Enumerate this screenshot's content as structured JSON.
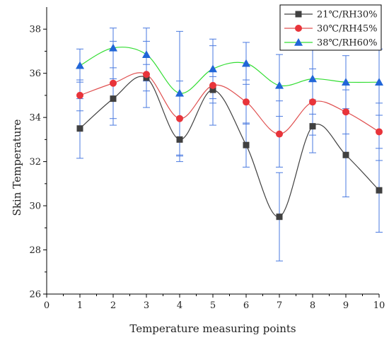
{
  "chart_data": {
    "type": "line",
    "xlabel": "Temperature measuring points",
    "ylabel": "Skin Temperature",
    "xlim": [
      0,
      10
    ],
    "ylim": [
      26,
      39
    ],
    "xticks": [
      "0",
      "1",
      "2",
      "3",
      "4",
      "5",
      "6",
      "7",
      "8",
      "9",
      "10"
    ],
    "yticks": [
      "26",
      "28",
      "30",
      "32",
      "34",
      "36",
      "38"
    ],
    "legend_position": "top-right",
    "x": [
      1,
      2,
      3,
      4,
      5,
      6,
      7,
      8,
      9,
      10
    ],
    "series": [
      {
        "name": "21℃/RH30%",
        "marker": "square",
        "line_color": "#404040",
        "marker_color": "#404040",
        "values": [
          33.5,
          34.85,
          35.8,
          33.0,
          35.25,
          32.75,
          29.5,
          33.6,
          32.3,
          30.7
        ],
        "errors": [
          1.35,
          0.9,
          0.6,
          1.0,
          0.6,
          1.0,
          2.0,
          1.2,
          1.9,
          1.9
        ]
      },
      {
        "name": "30℃/RH45%",
        "marker": "circle",
        "line_color": "#e05050",
        "marker_color": "#e8343a",
        "values": [
          35.0,
          35.55,
          35.95,
          33.95,
          35.45,
          34.7,
          33.25,
          34.7,
          34.25,
          33.35
        ],
        "errors": [
          0.7,
          1.9,
          1.5,
          1.7,
          1.8,
          1.0,
          1.5,
          1.5,
          1.0,
          1.3
        ]
      },
      {
        "name": "38℃/RH60%",
        "marker": "triangle",
        "line_color": "#33dd33",
        "marker_color": "#2166d8",
        "values": [
          36.35,
          37.15,
          36.85,
          35.1,
          36.2,
          36.45,
          35.45,
          35.75,
          35.6,
          35.6
        ],
        "errors": [
          0.75,
          0.9,
          1.2,
          2.8,
          1.35,
          0.95,
          1.4,
          1.6,
          1.2,
          1.5
        ]
      }
    ],
    "error_bar_color": "#4a7ae0"
  }
}
